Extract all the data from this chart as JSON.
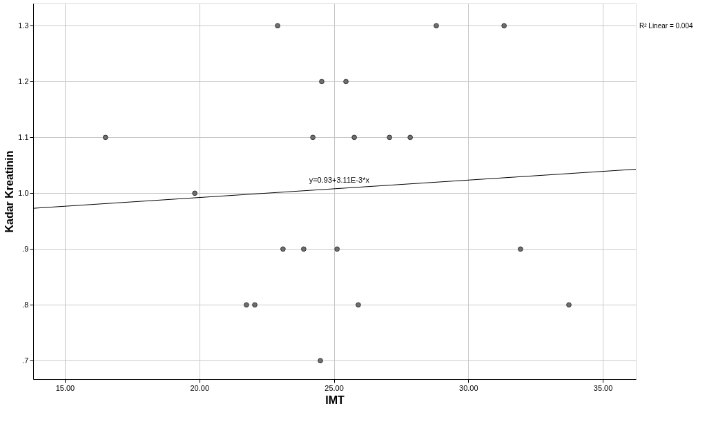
{
  "chart_data": {
    "type": "scatter",
    "xlabel": "IMT",
    "ylabel": "Kadar Kreatinin",
    "xlim": [
      13.82,
      36.23
    ],
    "ylim": [
      0.667,
      1.34
    ],
    "xticks": [
      {
        "value": 15,
        "label": "15.00"
      },
      {
        "value": 20,
        "label": "20.00"
      },
      {
        "value": 25,
        "label": "25.00"
      },
      {
        "value": 30,
        "label": "30.00"
      },
      {
        "value": 35,
        "label": "35.00"
      }
    ],
    "yticks": [
      {
        "value": 0.7,
        "label": ".7"
      },
      {
        "value": 0.8,
        "label": ".8"
      },
      {
        "value": 0.9,
        "label": ".9"
      },
      {
        "value": 1.0,
        "label": "1.0"
      },
      {
        "value": 1.1,
        "label": "1.1"
      },
      {
        "value": 1.2,
        "label": "1.2"
      },
      {
        "value": 1.3,
        "label": "1.3"
      }
    ],
    "grid": true,
    "series": [
      {
        "type": "scatter",
        "marker": "circle",
        "color": "#6e6e6e",
        "x": [
          22.91,
          28.81,
          31.33,
          24.55,
          25.45,
          16.51,
          24.22,
          25.76,
          27.07,
          27.84,
          19.83,
          23.11,
          23.88,
          25.12,
          31.94,
          21.75,
          22.06,
          25.91,
          33.74,
          24.5
        ],
        "values": [
          1.3,
          1.3,
          1.3,
          1.2,
          1.2,
          1.1,
          1.1,
          1.1,
          1.1,
          1.1,
          1.0,
          0.9,
          0.9,
          0.9,
          0.9,
          0.8,
          0.8,
          0.8,
          0.8,
          0.7
        ]
      },
      {
        "type": "line",
        "color": "#000000",
        "line_style": "solid",
        "x": [
          13.82,
          36.23
        ],
        "values": [
          0.973,
          1.043
        ]
      }
    ],
    "annotations": [
      {
        "text": "y=0.93+3.11E-3*x",
        "x": 25.2,
        "y": 1.01
      },
      "R² Linear = 0.004"
    ]
  }
}
